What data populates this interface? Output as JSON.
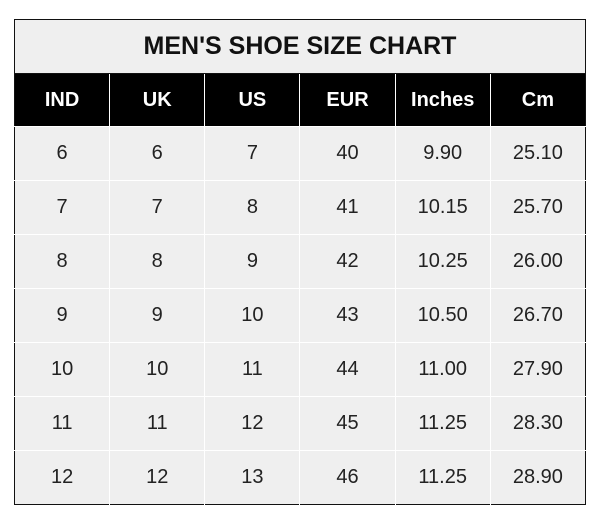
{
  "chart_data": {
    "type": "table",
    "title": "MEN'S SHOE SIZE CHART",
    "columns": [
      "IND",
      "UK",
      "US",
      "EUR",
      "Inches",
      "Cm"
    ],
    "rows": [
      [
        "6",
        "6",
        "7",
        "40",
        "9.90",
        "25.10"
      ],
      [
        "7",
        "7",
        "8",
        "41",
        "10.15",
        "25.70"
      ],
      [
        "8",
        "8",
        "9",
        "42",
        "10.25",
        "26.00"
      ],
      [
        "9",
        "9",
        "10",
        "43",
        "10.50",
        "26.70"
      ],
      [
        "10",
        "10",
        "11",
        "44",
        "11.00",
        "27.90"
      ],
      [
        "11",
        "11",
        "12",
        "45",
        "11.25",
        "28.30"
      ],
      [
        "12",
        "12",
        "13",
        "46",
        "11.25",
        "28.90"
      ]
    ],
    "colors": {
      "header_bg": "#000000",
      "header_text": "#ffffff",
      "cell_bg": "#efefef"
    }
  }
}
